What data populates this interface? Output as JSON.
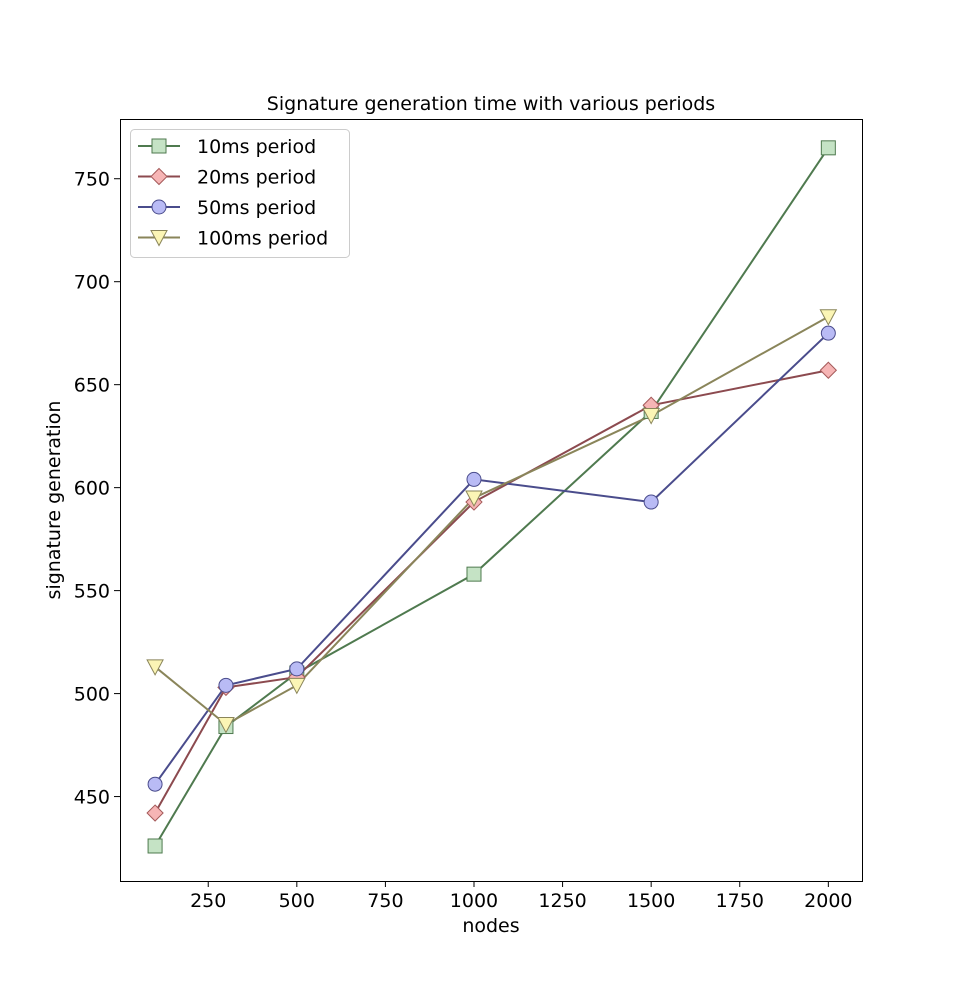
{
  "chart_data": {
    "type": "line",
    "title": "Signature generation time with various periods",
    "xlabel": "nodes",
    "ylabel": "signature generation",
    "xlim": [
      1,
      2095
    ],
    "ylim": [
      409,
      779
    ],
    "xticks": [
      250,
      500,
      750,
      1000,
      1250,
      1500,
      1750,
      2000
    ],
    "yticks": [
      450,
      500,
      550,
      600,
      650,
      700,
      750
    ],
    "x": [
      100,
      300,
      500,
      1000,
      1500,
      2000
    ],
    "grid": false,
    "legend_position": "top-left",
    "series": [
      {
        "name": "10ms period",
        "values": [
          426,
          484,
          510,
          558,
          637,
          765
        ],
        "line_color": "#4f7a4f",
        "fill_color": "#c5e3c5",
        "edge_color": "#4f7a4f",
        "marker": "square"
      },
      {
        "name": "20ms period",
        "values": [
          442,
          503,
          508,
          593,
          640,
          657
        ],
        "line_color": "#8c4a4f",
        "fill_color": "#f6b5b5",
        "edge_color": "#a55a5a",
        "marker": "diamond"
      },
      {
        "name": "50ms period",
        "values": [
          456,
          504,
          512,
          604,
          593,
          675
        ],
        "line_color": "#4a4c8c",
        "fill_color": "#b9bbf5",
        "edge_color": "#4a4c8c",
        "marker": "circle"
      },
      {
        "name": "100ms period",
        "values": [
          513,
          485,
          504,
          595,
          635,
          683
        ],
        "line_color": "#8a855a",
        "fill_color": "#fbf5b5",
        "edge_color": "#8a855a",
        "marker": "triangle-down"
      }
    ]
  }
}
